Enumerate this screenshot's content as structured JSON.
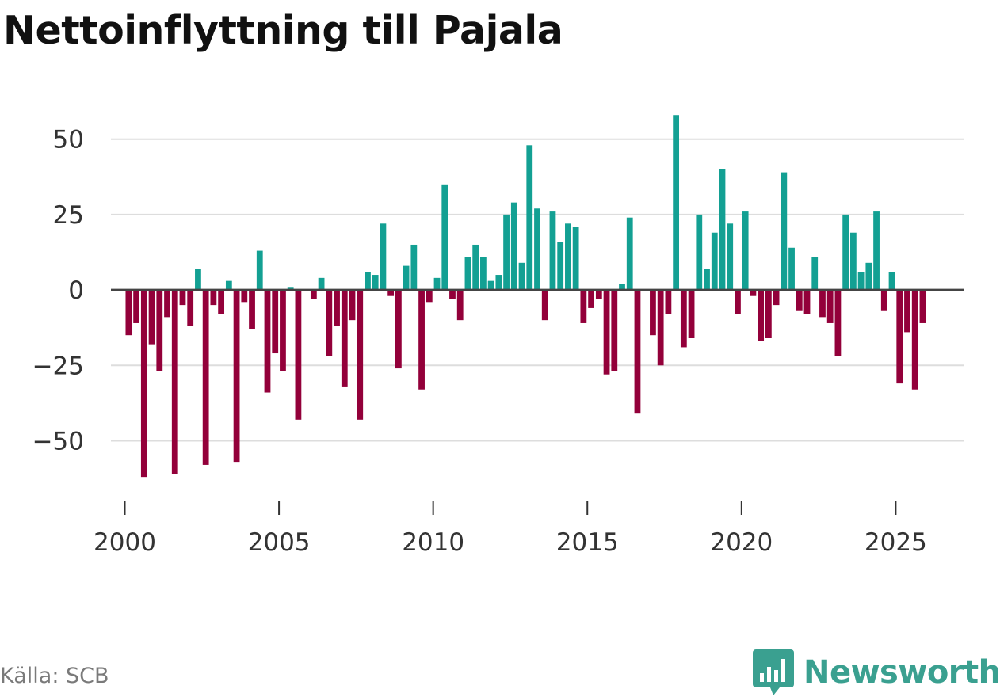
{
  "title": "Nettoinflyttning till Pajala",
  "source": "Källa: SCB",
  "brand": "Newsworthy",
  "colors": {
    "positive": "#13a093",
    "negative": "#93003a",
    "grid": "#dddddd",
    "zero": "#444444",
    "brand": "#3aa090"
  },
  "chart_data": {
    "type": "bar",
    "title": "Nettoinflyttning till Pajala",
    "xlabel": "",
    "ylabel": "",
    "ylim": [
      -68,
      62
    ],
    "yticks": [
      50,
      25,
      0,
      -25,
      -50
    ],
    "ytick_labels": [
      "50",
      "25",
      "0",
      "−25",
      "−50"
    ],
    "xlim": [
      1999.55,
      2027.2
    ],
    "xticks": [
      2000,
      2005,
      2010,
      2015,
      2020,
      2025
    ],
    "xtick_labels": [
      "2000",
      "2005",
      "2010",
      "2015",
      "2020",
      "2025"
    ],
    "frequency": "quarterly",
    "start": 2000.125,
    "step": 0.25,
    "values": [
      -15,
      -11,
      -62,
      -18,
      -27,
      -9,
      -61,
      -5,
      -12,
      7,
      -58,
      -5,
      -8,
      3,
      -57,
      -4,
      -13,
      13,
      -34,
      -21,
      -27,
      1,
      -43,
      0,
      -3,
      4,
      -22,
      -12,
      -32,
      -10,
      -43,
      6,
      5,
      22,
      -2,
      -26,
      8,
      15,
      -33,
      -4,
      4,
      35,
      -3,
      -10,
      11,
      15,
      11,
      3,
      5,
      25,
      29,
      9,
      48,
      27,
      -10,
      26,
      16,
      22,
      21,
      -11,
      -6,
      -3,
      -28,
      -27,
      2,
      24,
      -41,
      0,
      -15,
      -25,
      -8,
      58,
      -19,
      -16,
      25,
      7,
      19,
      40,
      22,
      -8,
      26,
      -2,
      -17,
      -16,
      -5,
      39,
      14,
      -7,
      -8,
      11,
      -9,
      -11,
      -22,
      25,
      19,
      6,
      9,
      26,
      -7,
      6,
      -31,
      -14,
      -33,
      -11
    ]
  }
}
